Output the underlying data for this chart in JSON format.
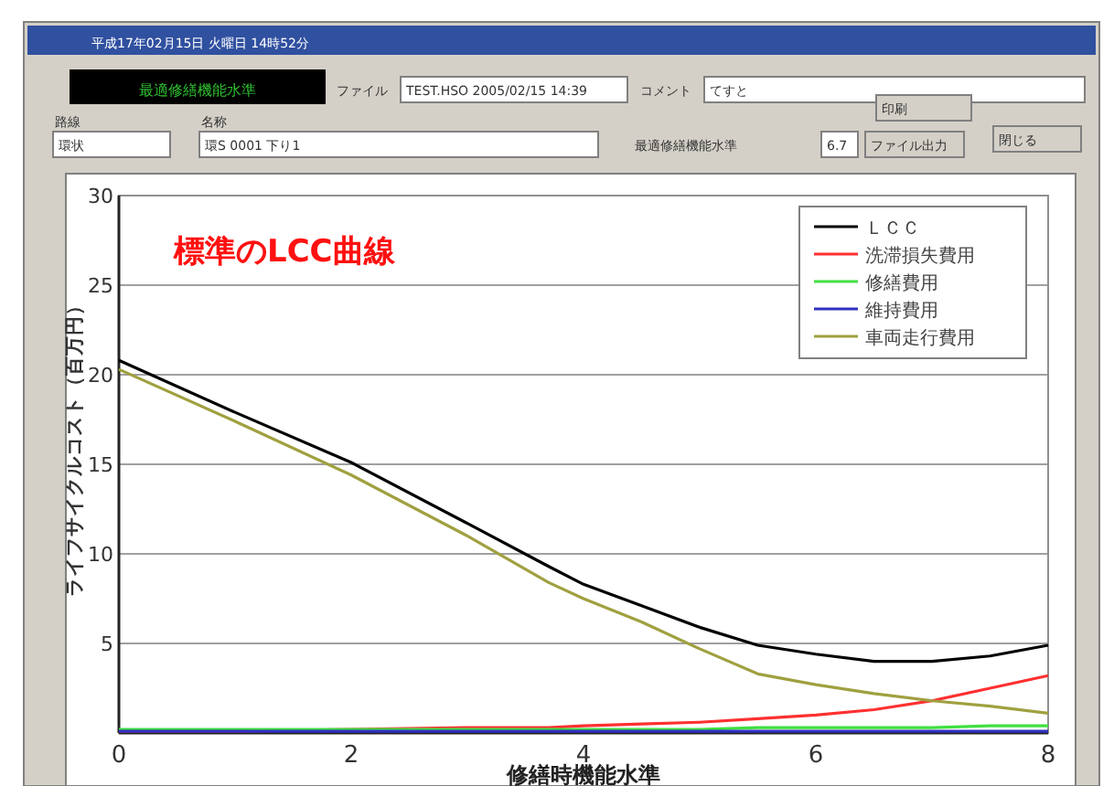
{
  "chart_data": {
    "type": "line",
    "title": "標準のLCC曲線",
    "xlabel": "修繕時機能水準",
    "ylabel": "ライフサイクルコスト（百万円）",
    "x": [
      0,
      1,
      2,
      3,
      3.7,
      4,
      4.5,
      5,
      5.5,
      6,
      6.5,
      7,
      7.5,
      8
    ],
    "series": [
      {
        "name": "ＬＣＣ",
        "color": "#000000",
        "values": [
          20.8,
          17.9,
          15.1,
          11.7,
          9.3,
          8.3,
          7.1,
          5.9,
          4.9,
          4.4,
          4.0,
          4.0,
          4.3,
          4.9
        ]
      },
      {
        "name": "洗滞損失費用",
        "color": "#ff3030",
        "values": [
          0.1,
          0.1,
          0.2,
          0.3,
          0.3,
          0.4,
          0.5,
          0.6,
          0.8,
          1.0,
          1.3,
          1.8,
          2.5,
          3.2
        ]
      },
      {
        "name": "修繕費用",
        "color": "#40e040",
        "values": [
          0.2,
          0.2,
          0.2,
          0.2,
          0.2,
          0.2,
          0.2,
          0.2,
          0.3,
          0.3,
          0.3,
          0.3,
          0.4,
          0.4
        ]
      },
      {
        "name": "維持費用",
        "color": "#3030c0",
        "values": [
          0.1,
          0.1,
          0.1,
          0.1,
          0.1,
          0.1,
          0.1,
          0.1,
          0.1,
          0.1,
          0.1,
          0.1,
          0.1,
          0.1
        ]
      },
      {
        "name": "車両走行費用",
        "color": "#a0a040",
        "values": [
          20.3,
          17.4,
          14.4,
          11.0,
          8.4,
          7.5,
          6.2,
          4.7,
          3.3,
          2.7,
          2.2,
          1.8,
          1.5,
          1.1
        ]
      }
    ],
    "xlim": [
      0,
      8
    ],
    "ylim": [
      0,
      30
    ],
    "xticks": [
      0,
      2,
      4,
      6,
      8
    ],
    "yticks": [
      5,
      10,
      15,
      20,
      25,
      30
    ],
    "grid": "y",
    "legend": "top right",
    "marker": "none",
    "line_style": "solid",
    "annotations": [
      "平成17年02月15日 火曜日 14時52分",
      "最適修繕機能水準",
      "ファイル",
      "TEST.HSO  2005/02/15 14:39",
      "コメント",
      "てすと",
      "路線",
      "環状",
      "名称",
      "環S 0001    下り1",
      "最適修繕機能水準",
      "6.7",
      "印刷",
      "ファイル出力",
      "閉じる"
    ]
  }
}
